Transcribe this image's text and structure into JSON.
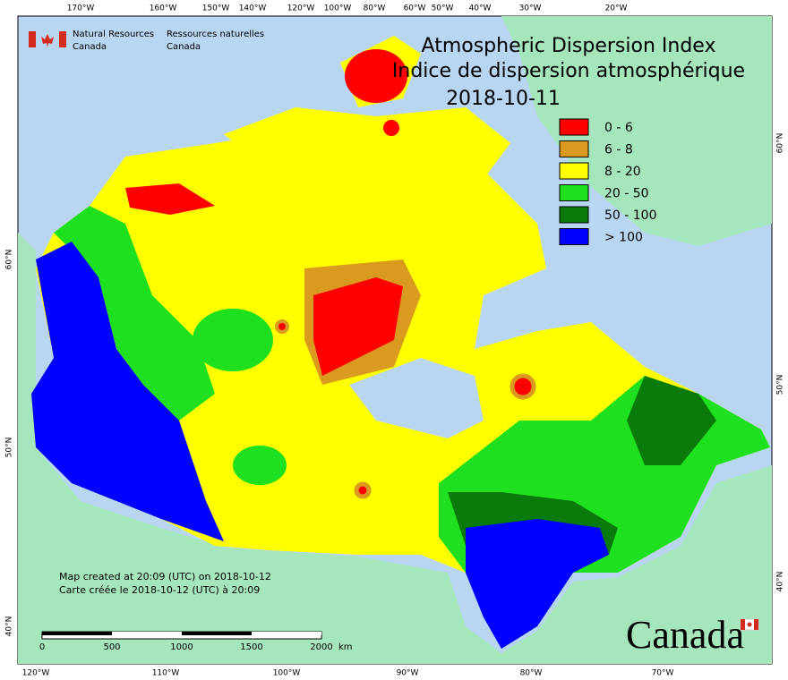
{
  "header": {
    "org_en": [
      "Natural Resources",
      "Canada"
    ],
    "org_fr": [
      "Ressources naturelles",
      "Canada"
    ]
  },
  "title": [
    "Atmospheric Dispersion Index",
    "Indice de dispersion atmosphérique"
  ],
  "date": "2018-10-11",
  "legend": [
    {
      "label": "0 - 6",
      "color": "#ff0000"
    },
    {
      "label": "6 - 8",
      "color": "#d99a1f"
    },
    {
      "label": "8 - 20",
      "color": "#ffff00"
    },
    {
      "label": "20 - 50",
      "color": "#1ee01e"
    },
    {
      "label": "50 - 100",
      "color": "#0a7a0a"
    },
    {
      "label": "> 100",
      "color": "#0000ff"
    }
  ],
  "graticule": {
    "top": [
      "170°W",
      "160°W",
      "150°W",
      "140°W",
      "120°W",
      "100°W",
      "80°W",
      "60°W",
      "50°W",
      "40°W",
      "30°W",
      "20°W"
    ],
    "bottom": [
      "120°W",
      "110°W",
      "100°W",
      "90°W",
      "80°W",
      "70°W"
    ],
    "left": [
      "60°N",
      "50°N",
      "40°N"
    ],
    "right": [
      "60°N",
      "50°N",
      "40°N"
    ]
  },
  "notes": [
    "Map created at 20:09 (UTC) on 2018-10-12",
    "Carte créée le 2018-10-12 (UTC) à 20:09"
  ],
  "scale_bar": {
    "labels": [
      "0",
      "500",
      "1000",
      "1500",
      "2000"
    ],
    "unit": "km"
  },
  "wordmark": "Canada"
}
